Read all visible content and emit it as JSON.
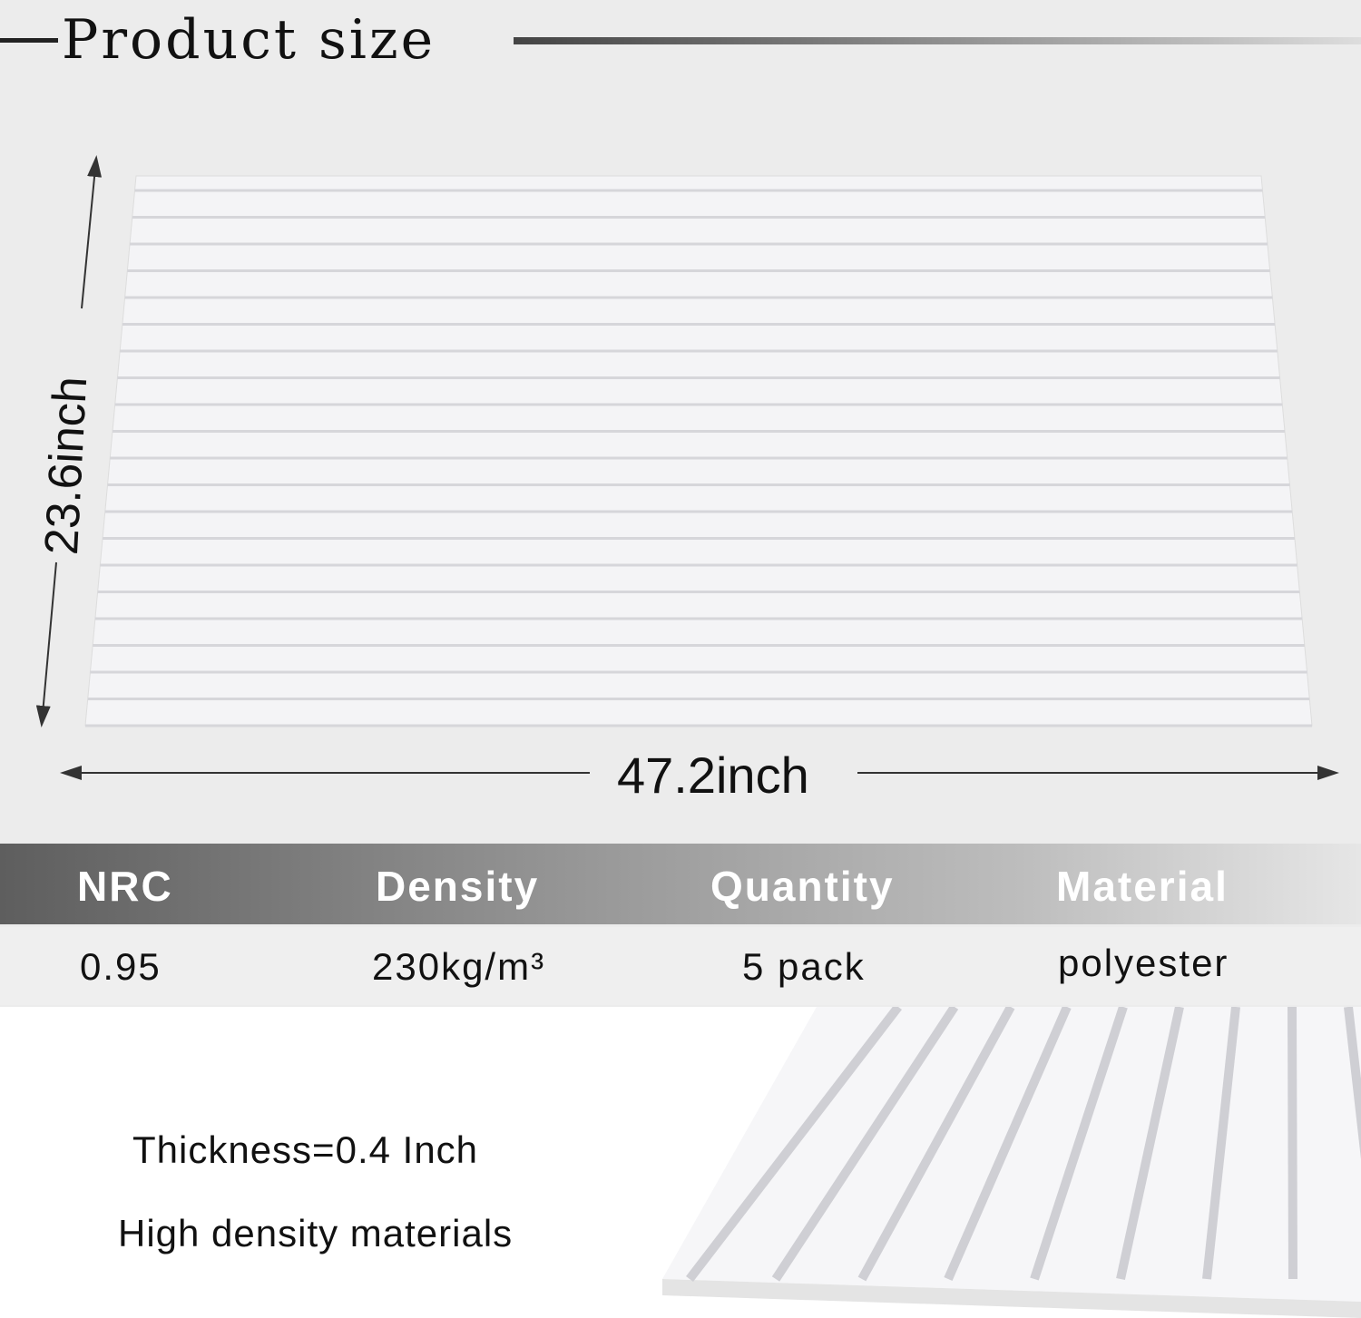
{
  "title": "Product size",
  "dimensions": {
    "height": "23.6inch",
    "width": "47.2inch"
  },
  "specs": {
    "headers": [
      "NRC",
      "Density",
      "Quantity",
      "Material"
    ],
    "values": [
      "0.95",
      "230kg/m³",
      "5 pack",
      "polyester"
    ]
  },
  "notes": [
    "Thickness=0.4 Inch",
    "High density materials"
  ]
}
